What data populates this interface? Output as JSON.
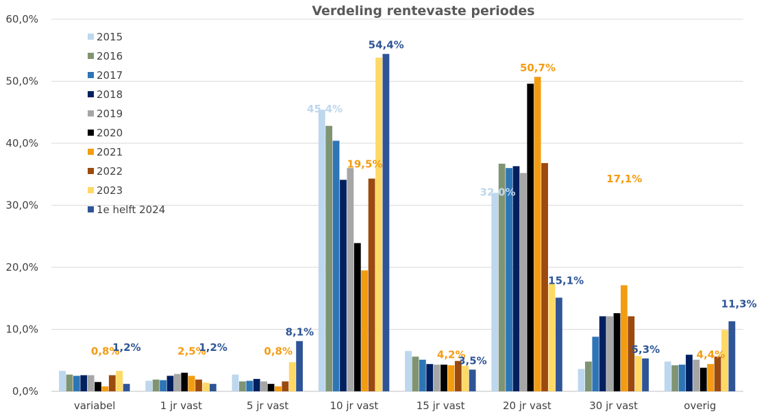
{
  "chart_data": {
    "type": "bar",
    "title": "Verdeling rentevaste periodes",
    "xlabel": "",
    "ylabel": "",
    "ylim": [
      0,
      60
    ],
    "y_ticks": [
      "0,0%",
      "10,0%",
      "20,0%",
      "30,0%",
      "40,0%",
      "50,0%",
      "60,0%"
    ],
    "grid": true,
    "legend_position": "top-left",
    "categories": [
      "variabel",
      "1 jr vast",
      "5 jr vast",
      "10 jr vast",
      "15 jr vast",
      "20 jr vast",
      "30 jr vast",
      "overig"
    ],
    "series": [
      {
        "name": "2015",
        "color": "#BDD7EE",
        "values": [
          3.3,
          1.7,
          2.7,
          45.4,
          6.5,
          32.0,
          3.6,
          4.8
        ]
      },
      {
        "name": "2016",
        "color": "#7F9473",
        "values": [
          2.7,
          1.9,
          1.6,
          42.8,
          5.6,
          36.7,
          4.8,
          4.2
        ]
      },
      {
        "name": "2017",
        "color": "#2E75B6",
        "values": [
          2.5,
          1.8,
          1.7,
          40.4,
          5.1,
          36.0,
          8.8,
          4.3
        ]
      },
      {
        "name": "2018",
        "color": "#002060",
        "values": [
          2.6,
          2.5,
          2.0,
          34.1,
          4.4,
          36.3,
          12.1,
          5.9
        ]
      },
      {
        "name": "2019",
        "color": "#A6A6A6",
        "values": [
          2.6,
          2.8,
          1.6,
          36.0,
          4.3,
          35.2,
          12.1,
          5.1
        ]
      },
      {
        "name": "2020",
        "color": "#000000",
        "values": [
          1.5,
          3.0,
          1.2,
          23.9,
          4.3,
          49.6,
          12.6,
          3.8
        ]
      },
      {
        "name": "2021",
        "color": "#F39C12",
        "values": [
          0.8,
          2.5,
          0.8,
          19.5,
          4.2,
          50.7,
          17.1,
          4.4
        ]
      },
      {
        "name": "2022",
        "color": "#9C4A0E",
        "values": [
          2.6,
          1.9,
          1.6,
          34.3,
          4.9,
          36.8,
          12.1,
          5.6
        ]
      },
      {
        "name": "2023",
        "color": "#FFD966",
        "values": [
          3.3,
          1.4,
          4.7,
          53.8,
          4.1,
          17.3,
          5.7,
          9.9
        ]
      },
      {
        "name": "1e helft 2024",
        "color": "#2F5597",
        "values": [
          1.2,
          1.2,
          8.1,
          54.4,
          3.5,
          15.1,
          5.3,
          11.3
        ]
      }
    ],
    "annotations": [
      {
        "category": 0,
        "series": 6,
        "text": "0,8%"
      },
      {
        "category": 0,
        "series": 9,
        "text": "1,2%"
      },
      {
        "category": 1,
        "series": 6,
        "text": "2,5%"
      },
      {
        "category": 1,
        "series": 9,
        "text": "1,2%"
      },
      {
        "category": 2,
        "series": 6,
        "text": "0,8%"
      },
      {
        "category": 2,
        "series": 9,
        "text": "8,1%"
      },
      {
        "category": 3,
        "series": 0,
        "text": "45,4%"
      },
      {
        "category": 3,
        "series": 6,
        "text": "19,5%"
      },
      {
        "category": 3,
        "series": 9,
        "text": "54,4%"
      },
      {
        "category": 4,
        "series": 6,
        "text": "4,2%"
      },
      {
        "category": 4,
        "series": 9,
        "text": "3,5%"
      },
      {
        "category": 5,
        "series": 0,
        "text": "32,0%"
      },
      {
        "category": 5,
        "series": 6,
        "text": "50,7%"
      },
      {
        "category": 5,
        "series": 9,
        "text": "15,1%"
      },
      {
        "category": 6,
        "series": 6,
        "text": "17,1%"
      },
      {
        "category": 6,
        "series": 9,
        "text": "5,3%"
      },
      {
        "category": 7,
        "series": 6,
        "text": "4,4%"
      },
      {
        "category": 7,
        "series": 9,
        "text": "11,3%"
      }
    ]
  }
}
